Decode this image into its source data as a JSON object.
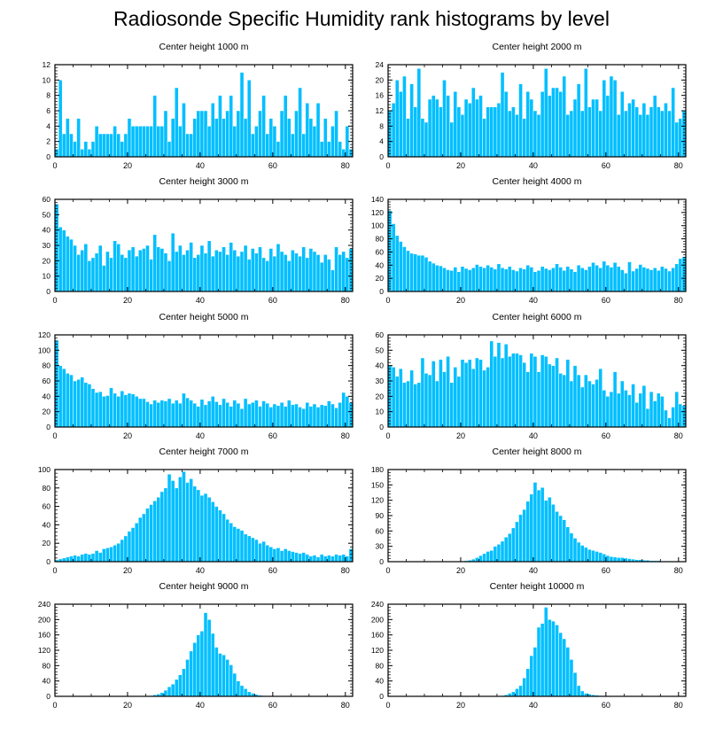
{
  "title": "Radiosonde Specific Humidity rank histograms by level",
  "colors": {
    "bar": "#00bfff",
    "bar_edge": "#ffffff",
    "axis": "#000000"
  },
  "chart_data": [
    {
      "type": "bar",
      "title": "Center height 1000 m",
      "xlim": [
        0,
        82
      ],
      "ylim": [
        0,
        12
      ],
      "xticks": [
        0,
        20,
        40,
        60,
        80
      ],
      "yticks": [
        0,
        2,
        4,
        6,
        8,
        10,
        12
      ],
      "values": [
        1,
        10,
        3,
        5,
        3,
        2,
        5,
        1,
        2,
        1,
        2,
        4,
        3,
        3,
        3,
        3,
        4,
        3,
        2,
        3,
        5,
        4,
        4,
        4,
        4,
        4,
        4,
        8,
        4,
        4,
        6,
        2,
        5,
        9,
        4,
        7,
        3,
        3,
        5,
        6,
        6,
        6,
        4,
        7,
        5,
        8,
        5,
        6,
        8,
        4,
        6,
        11,
        5,
        10,
        3,
        4,
        6,
        8,
        3,
        5,
        4,
        2,
        6,
        8,
        5,
        3,
        6,
        9,
        3,
        7,
        5,
        4,
        7,
        2,
        5,
        2,
        4,
        6,
        2,
        1,
        4,
        1
      ]
    },
    {
      "type": "bar",
      "title": "Center height 2000 m",
      "xlim": [
        0,
        82
      ],
      "ylim": [
        0,
        24
      ],
      "xticks": [
        0,
        20,
        40,
        60,
        80
      ],
      "yticks": [
        0,
        4,
        8,
        12,
        16,
        20,
        24
      ],
      "values": [
        12,
        14,
        20,
        17,
        21,
        10,
        19,
        13,
        23,
        10,
        9,
        15,
        16,
        15,
        13,
        20,
        16,
        9,
        17,
        13,
        11,
        15,
        14,
        18,
        15,
        16,
        10,
        13,
        13,
        13,
        14,
        22,
        17,
        12,
        13,
        11,
        19,
        10,
        17,
        15,
        12,
        11,
        17,
        23,
        16,
        18,
        18,
        17,
        21,
        11,
        12,
        15,
        19,
        12,
        23,
        13,
        15,
        15,
        12,
        20,
        16,
        21,
        20,
        11,
        17,
        12,
        14,
        15,
        13,
        11,
        14,
        11,
        13,
        16,
        13,
        12,
        14,
        12,
        18,
        9,
        10,
        12
      ]
    },
    {
      "type": "bar",
      "title": "Center height 3000 m",
      "xlim": [
        0,
        82
      ],
      "ylim": [
        0,
        60
      ],
      "xticks": [
        0,
        20,
        40,
        60,
        80
      ],
      "yticks": [
        0,
        10,
        20,
        30,
        40,
        50,
        60
      ],
      "values": [
        57,
        42,
        40,
        36,
        34,
        30,
        24,
        27,
        31,
        20,
        22,
        25,
        30,
        17,
        26,
        22,
        33,
        31,
        24,
        22,
        27,
        29,
        23,
        27,
        28,
        30,
        21,
        37,
        29,
        28,
        25,
        20,
        38,
        26,
        30,
        24,
        27,
        32,
        22,
        24,
        30,
        25,
        33,
        23,
        27,
        26,
        29,
        24,
        32,
        27,
        23,
        26,
        30,
        21,
        28,
        25,
        29,
        22,
        20,
        28,
        23,
        31,
        26,
        24,
        20,
        27,
        25,
        23,
        29,
        22,
        28,
        26,
        24,
        19,
        24,
        21,
        14,
        29,
        24,
        26,
        22,
        28
      ]
    },
    {
      "type": "bar",
      "title": "Center height 4000 m",
      "xlim": [
        0,
        82
      ],
      "ylim": [
        0,
        140
      ],
      "xticks": [
        0,
        20,
        40,
        60,
        80
      ],
      "yticks": [
        0,
        20,
        40,
        60,
        80,
        100,
        120,
        140
      ],
      "values": [
        123,
        103,
        85,
        76,
        68,
        62,
        58,
        57,
        55,
        55,
        52,
        46,
        43,
        40,
        39,
        36,
        33,
        32,
        37,
        30,
        38,
        35,
        33,
        36,
        41,
        38,
        36,
        40,
        37,
        34,
        42,
        36,
        34,
        38,
        33,
        31,
        36,
        34,
        40,
        37,
        30,
        32,
        38,
        35,
        33,
        36,
        42,
        37,
        32,
        38,
        34,
        30,
        40,
        36,
        33,
        38,
        44,
        40,
        36,
        46,
        40,
        37,
        44,
        38,
        33,
        28,
        45,
        31,
        35,
        41,
        37,
        35,
        33,
        36,
        32,
        38,
        35,
        31,
        36,
        42,
        50,
        53
      ]
    },
    {
      "type": "bar",
      "title": "Center height 5000 m",
      "xlim": [
        0,
        82
      ],
      "ylim": [
        0,
        120
      ],
      "xticks": [
        0,
        20,
        40,
        60,
        80
      ],
      "yticks": [
        0,
        20,
        40,
        60,
        80,
        100,
        120
      ],
      "values": [
        113,
        80,
        76,
        70,
        68,
        60,
        62,
        65,
        58,
        56,
        50,
        45,
        46,
        40,
        41,
        51,
        44,
        40,
        47,
        42,
        44,
        43,
        40,
        37,
        37,
        33,
        30,
        35,
        32,
        35,
        34,
        37,
        31,
        35,
        31,
        44,
        38,
        35,
        31,
        27,
        36,
        29,
        34,
        40,
        33,
        29,
        37,
        32,
        27,
        35,
        31,
        24,
        37,
        30,
        32,
        35,
        27,
        34,
        31,
        26,
        30,
        28,
        32,
        27,
        35,
        29,
        30,
        26,
        24,
        32,
        27,
        30,
        26,
        29,
        28,
        34,
        30,
        25,
        32,
        45,
        40,
        32
      ]
    },
    {
      "type": "bar",
      "title": "Center height 6000 m",
      "xlim": [
        0,
        82
      ],
      "ylim": [
        0,
        60
      ],
      "xticks": [
        0,
        20,
        40,
        60,
        80
      ],
      "yticks": [
        0,
        10,
        20,
        30,
        40,
        50,
        60
      ],
      "values": [
        40,
        39,
        33,
        38,
        29,
        30,
        37,
        28,
        29,
        45,
        35,
        34,
        43,
        30,
        44,
        36,
        46,
        29,
        39,
        33,
        44,
        42,
        44,
        38,
        45,
        44,
        37,
        39,
        56,
        46,
        55,
        45,
        54,
        46,
        48,
        48,
        47,
        42,
        36,
        48,
        46,
        36,
        47,
        46,
        41,
        40,
        45,
        35,
        34,
        44,
        30,
        40,
        34,
        26,
        34,
        30,
        28,
        31,
        38,
        24,
        20,
        23,
        36,
        22,
        30,
        24,
        21,
        28,
        16,
        22,
        27,
        12,
        23,
        17,
        22,
        20,
        11,
        6,
        13,
        23,
        15,
        14
      ]
    },
    {
      "type": "bar",
      "title": "Center height 7000 m",
      "xlim": [
        0,
        82
      ],
      "ylim": [
        0,
        100
      ],
      "xticks": [
        0,
        20,
        40,
        60,
        80
      ],
      "yticks": [
        0,
        20,
        40,
        60,
        80,
        100
      ],
      "values": [
        2,
        3,
        4,
        5,
        6,
        7,
        6,
        8,
        9,
        8,
        9,
        12,
        10,
        14,
        15,
        16,
        18,
        20,
        24,
        28,
        33,
        37,
        42,
        48,
        52,
        58,
        62,
        66,
        70,
        76,
        80,
        95,
        88,
        80,
        92,
        98,
        86,
        90,
        82,
        78,
        72,
        74,
        70,
        65,
        60,
        56,
        52,
        46,
        42,
        38,
        36,
        34,
        30,
        28,
        26,
        24,
        20,
        22,
        18,
        16,
        14,
        15,
        12,
        14,
        12,
        11,
        10,
        9,
        10,
        8,
        6,
        7,
        5,
        8,
        6,
        7,
        6,
        8,
        7,
        8,
        6,
        14
      ]
    },
    {
      "type": "bar",
      "title": "Center height 8000 m",
      "xlim": [
        0,
        82
      ],
      "ylim": [
        0,
        180
      ],
      "xticks": [
        0,
        20,
        40,
        60,
        80
      ],
      "yticks": [
        0,
        30,
        60,
        90,
        120,
        150,
        180
      ],
      "values": [
        0,
        0,
        0,
        0,
        0,
        0,
        0,
        0,
        0,
        0,
        0,
        0,
        0,
        0,
        0,
        0,
        0,
        0,
        0,
        1,
        1,
        2,
        3,
        5,
        8,
        12,
        16,
        20,
        22,
        30,
        34,
        40,
        48,
        55,
        66,
        78,
        92,
        102,
        118,
        132,
        155,
        140,
        145,
        120,
        126,
        112,
        98,
        90,
        82,
        68,
        56,
        46,
        38,
        32,
        28,
        24,
        22,
        20,
        18,
        15,
        12,
        10,
        9,
        8,
        8,
        7,
        6,
        5,
        4,
        4,
        3,
        3,
        2,
        2,
        2,
        1,
        1,
        1,
        1,
        1,
        0,
        0
      ]
    },
    {
      "type": "bar",
      "title": "Center height 9000 m",
      "xlim": [
        0,
        82
      ],
      "ylim": [
        0,
        240
      ],
      "xticks": [
        0,
        20,
        40,
        60,
        80
      ],
      "yticks": [
        0,
        40,
        80,
        120,
        160,
        200,
        240
      ],
      "values": [
        0,
        0,
        0,
        0,
        0,
        0,
        0,
        0,
        0,
        0,
        0,
        0,
        0,
        0,
        0,
        0,
        0,
        0,
        0,
        0,
        0,
        0,
        0,
        0,
        0,
        1,
        2,
        4,
        6,
        10,
        16,
        25,
        32,
        44,
        56,
        72,
        96,
        118,
        140,
        160,
        170,
        218,
        200,
        164,
        128,
        112,
        108,
        96,
        82,
        60,
        40,
        28,
        20,
        12,
        8,
        5,
        3,
        2,
        1,
        1,
        1,
        1,
        0,
        0,
        0,
        0,
        0,
        0,
        0,
        0,
        0,
        0,
        0,
        0,
        0,
        0,
        0,
        0,
        0,
        0,
        0,
        0
      ]
    },
    {
      "type": "bar",
      "title": "Center height 10000 m",
      "xlim": [
        0,
        82
      ],
      "ylim": [
        0,
        240
      ],
      "xticks": [
        0,
        20,
        40,
        60,
        80
      ],
      "yticks": [
        0,
        40,
        80,
        120,
        160,
        200,
        240
      ],
      "values": [
        0,
        0,
        0,
        0,
        0,
        0,
        0,
        0,
        0,
        0,
        0,
        0,
        0,
        0,
        0,
        0,
        0,
        0,
        0,
        0,
        0,
        0,
        0,
        0,
        0,
        0,
        0,
        0,
        0,
        0,
        1,
        2,
        4,
        8,
        12,
        20,
        28,
        48,
        72,
        106,
        128,
        180,
        190,
        232,
        200,
        196,
        186,
        166,
        150,
        128,
        96,
        62,
        28,
        14,
        8,
        6,
        4,
        3,
        2,
        2,
        1,
        1,
        0,
        0,
        0,
        0,
        0,
        0,
        0,
        0,
        0,
        0,
        0,
        0,
        0,
        0,
        0,
        0,
        0,
        0,
        0,
        0
      ]
    }
  ]
}
